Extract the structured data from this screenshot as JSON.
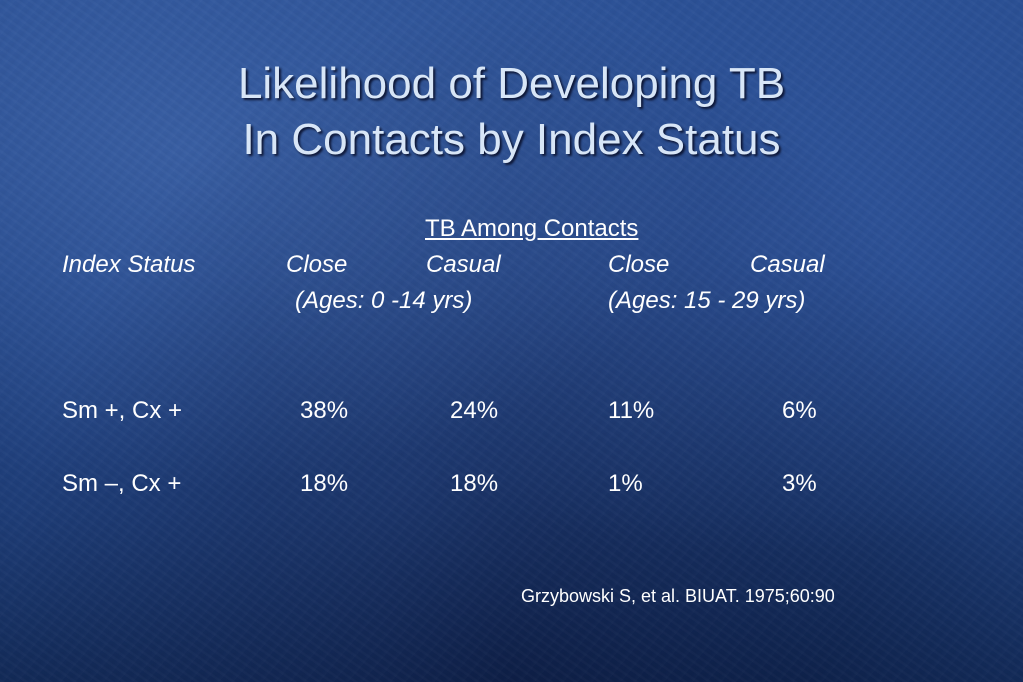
{
  "slide": {
    "title_line1": "Likelihood of Developing TB",
    "title_line2": "In Contacts by Index Status",
    "group_header": "TB Among Contacts",
    "columns": {
      "index_status": "Index Status",
      "close_1": "Close",
      "casual_1": "Casual",
      "close_2": "Close",
      "casual_2": "Casual"
    },
    "age_groups": [
      "(Ages: 0 -14 yrs)",
      "(Ages: 15 - 29 yrs)"
    ],
    "rows": [
      {
        "label": "Sm +, Cx +",
        "values": [
          "38%",
          "24%",
          "11%",
          "6%"
        ]
      },
      {
        "label": "Sm –, Cx +",
        "values": [
          "18%",
          "18%",
          "1%",
          "3%"
        ]
      }
    ],
    "citation": "Grzybowski S, et al. BIUAT. 1975;60:90"
  }
}
